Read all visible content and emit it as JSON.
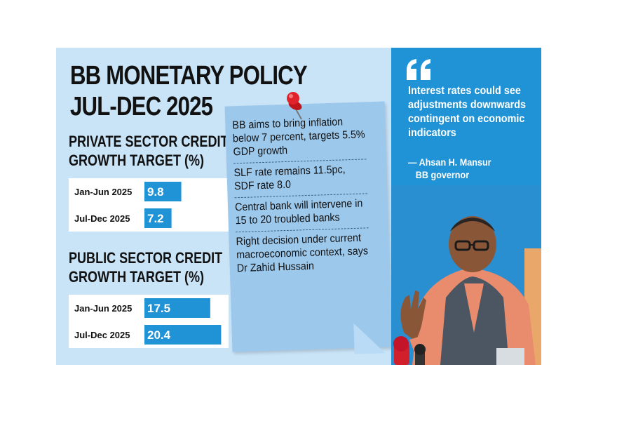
{
  "title_line1": "BB MONETARY POLICY",
  "title_line2": "JUL-DEC 2025",
  "private_title_line1": "PRIVATE SECTOR CREDIT",
  "private_title_line2": "GROWTH TARGET (%)",
  "public_title_line1": "PUBLIC SECTOR CREDIT",
  "public_title_line2": "GROWTH TARGET (%)",
  "colors": {
    "background": "#c9e3f7",
    "bar": "#1f93d6",
    "note": "#9cc8ec",
    "quote_panel": "#1f93d6"
  },
  "chart_data": [
    {
      "type": "bar",
      "orientation": "horizontal",
      "title": "PRIVATE SECTOR CREDIT GROWTH TARGET (%)",
      "categories": [
        "Jan-Jun 2025",
        "Jul-Dec 2025"
      ],
      "values": [
        9.8,
        7.2
      ],
      "xlim": [
        0,
        22
      ]
    },
    {
      "type": "bar",
      "orientation": "horizontal",
      "title": "PUBLIC SECTOR CREDIT GROWTH TARGET (%)",
      "categories": [
        "Jan-Jun 2025",
        "Jul-Dec 2025"
      ],
      "values": [
        17.5,
        20.4
      ],
      "xlim": [
        0,
        22
      ]
    }
  ],
  "note_items": [
    "BB aims to bring inflation below 7 percent, targets 5.5% GDP growth",
    "SLF rate remains 11.5pc, SDF rate 8.0",
    "Central bank will intervene in 15 to 20 troubled banks",
    "Right decision under current macroeconomic context, says Dr Zahid Hussain"
  ],
  "quote_text": "Interest rates could see adjustments downwards contingent on economic indicators",
  "attribution_name": "— Ahsan H. Mansur",
  "attribution_role": "BB governor",
  "icons": {
    "quote": "quote-mark-icon",
    "pin": "push-pin-icon"
  }
}
